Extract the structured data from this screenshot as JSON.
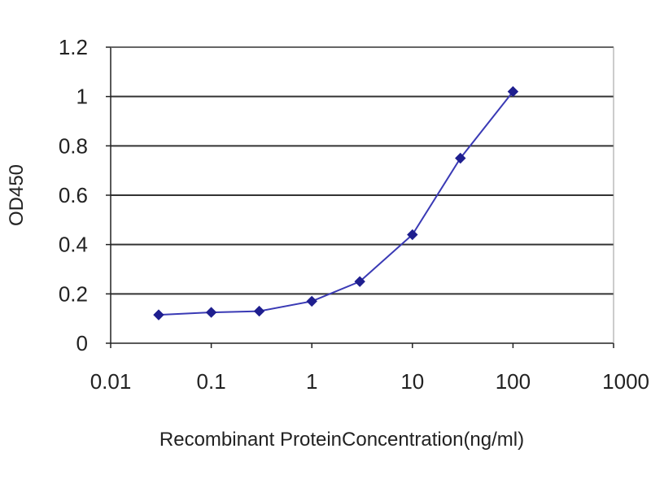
{
  "chart_data": {
    "type": "line",
    "x_scale": "log",
    "xlabel": "Recombinant ProteinConcentration(ng/ml)",
    "ylabel": "OD450",
    "xlim": [
      0.01,
      1000
    ],
    "ylim": [
      0,
      1.2
    ],
    "x_ticks": [
      0.01,
      0.1,
      1,
      10,
      100,
      1000
    ],
    "x_tick_labels": [
      "0.01",
      "0.1",
      "1",
      "10",
      "100",
      "1000"
    ],
    "y_ticks": [
      0,
      0.2,
      0.4,
      0.6,
      0.8,
      1,
      1.2
    ],
    "y_tick_labels": [
      "0",
      "0.2",
      "0.4",
      "0.6",
      "0.8",
      "1",
      "1.2"
    ],
    "grid": "horizontal",
    "legend": "none",
    "series": [
      {
        "color": "#1f1f8f",
        "x": [
          0.03,
          0.1,
          0.3,
          1,
          3,
          10,
          30,
          100
        ],
        "y": [
          0.115,
          0.125,
          0.13,
          0.17,
          0.25,
          0.44,
          0.75,
          1.02
        ]
      }
    ]
  }
}
